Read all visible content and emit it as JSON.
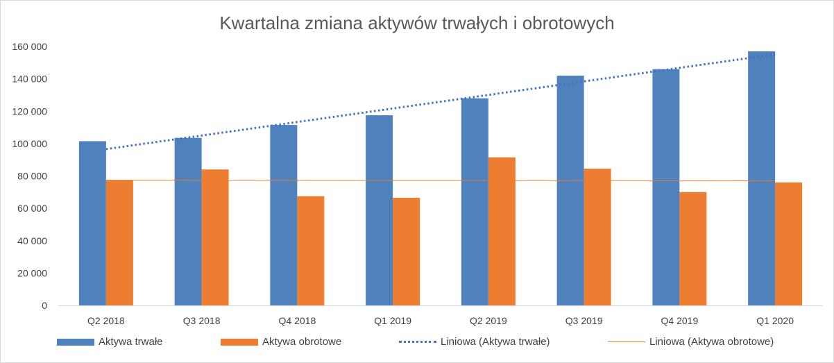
{
  "chart_data": {
    "type": "bar",
    "title": "Kwartalna zmiana aktywów trwałych i obrotowych",
    "categories": [
      "Q2 2018",
      "Q3 2018",
      "Q4 2018",
      "Q1 2019",
      "Q2 2019",
      "Q3 2019",
      "Q4 2019",
      "Q1 2020"
    ],
    "series": [
      {
        "name": "Aktywa trwałe",
        "color": "#4f81bd",
        "values": [
          101500,
          103500,
          111500,
          117500,
          128000,
          142000,
          146000,
          157000
        ]
      },
      {
        "name": "Aktywa obrotowe",
        "color": "#ed7d31",
        "values": [
          77500,
          84000,
          67500,
          66500,
          91500,
          84500,
          70000,
          76000
        ]
      }
    ],
    "trendlines": [
      {
        "name": "Liniowa (Aktywa trwałe)",
        "series": "Aktywa trwałe",
        "color": "#4472c4",
        "style": "dotted"
      },
      {
        "name": "Liniowa (Aktywa obrotowe)",
        "series": "Aktywa obrotowe",
        "color": "#ed7d31",
        "style": "solid"
      }
    ],
    "yticks": [
      "0",
      "20 000",
      "40 000",
      "60 000",
      "80 000",
      "100 000",
      "120 000",
      "140 000",
      "160 000"
    ],
    "ylim": [
      0,
      160000
    ],
    "xlabel": "",
    "ylabel": "",
    "legend": "bottom",
    "grid": false
  }
}
